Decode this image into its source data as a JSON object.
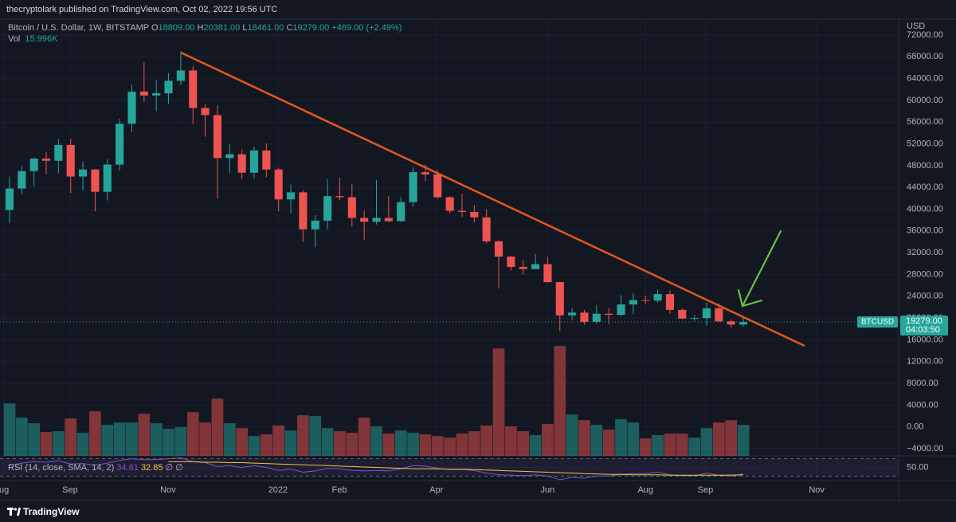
{
  "header": {
    "publisher": "thecryptolark published on TradingView.com, Oct 02, 2022 19:56 UTC"
  },
  "footer": {
    "brand": "TradingView"
  },
  "chart_data": {
    "type": "candlestick",
    "title": "Bitcoin / U.S. Dollar, 1W, BITSTAMP",
    "ohlc_legend": [
      {
        "key": "O",
        "label": "18809.00"
      },
      {
        "key": "H",
        "label": "20381.00"
      },
      {
        "key": "L",
        "label": "18461.00"
      },
      {
        "key": "C",
        "label": "19279.00"
      }
    ],
    "change_label": "+469.00 (+2.49%)",
    "open": [
      39850,
      43800,
      47000,
      49300,
      48900,
      51800,
      46000,
      47300,
      43200,
      48200,
      55700,
      61600,
      60900,
      61300,
      63600,
      65500,
      58600,
      57300,
      49400,
      50100,
      46700,
      50800,
      47300,
      41800,
      43100,
      36300,
      37900,
      42400,
      42200,
      38400,
      37700,
      38400,
      37800,
      41300,
      46800,
      46400,
      42200,
      39700,
      39500,
      38500,
      34100,
      31300,
      29400,
      29000,
      29900,
      26600,
      20500,
      21000,
      19300,
      20800,
      20600,
      22500,
      23300,
      23200,
      24400,
      21500,
      19900,
      20000,
      21800,
      19400,
      18809
    ],
    "high": [
      46000,
      47900,
      49500,
      50500,
      52900,
      52950,
      48800,
      47400,
      49200,
      56600,
      62900,
      67000,
      63700,
      65000,
      69000,
      66300,
      59300,
      59100,
      51900,
      50900,
      51500,
      52100,
      47600,
      44500,
      43500,
      38900,
      45500,
      45800,
      44600,
      39800,
      45400,
      42400,
      42300,
      47700,
      48200,
      47200,
      42400,
      42900,
      40800,
      40000,
      34300,
      31400,
      30600,
      31700,
      31200,
      26700,
      21900,
      21500,
      22400,
      21800,
      24200,
      24600,
      24100,
      25200,
      25100,
      21800,
      20600,
      22800,
      22700,
      19700,
      20381
    ],
    "low": [
      37400,
      42800,
      44200,
      46400,
      46600,
      43000,
      43400,
      39600,
      41600,
      47100,
      54200,
      59700,
      58000,
      59400,
      62800,
      55600,
      53300,
      42000,
      46700,
      45500,
      45600,
      45900,
      39600,
      39300,
      34000,
      33000,
      36300,
      41700,
      36800,
      34300,
      37200,
      37600,
      37600,
      40500,
      45200,
      41900,
      39200,
      38600,
      37600,
      33700,
      25400,
      28700,
      28000,
      29000,
      26500,
      17600,
      19600,
      18800,
      18900,
      18900,
      20300,
      20700,
      22600,
      22800,
      20800,
      19800,
      19500,
      18600,
      19300,
      18200,
      18461
    ],
    "close": [
      43800,
      47000,
      49300,
      48900,
      51800,
      46000,
      47300,
      43200,
      48200,
      55700,
      61600,
      60900,
      61300,
      63600,
      65500,
      58600,
      57300,
      49400,
      50100,
      46700,
      50800,
      47300,
      41800,
      43100,
      36300,
      37900,
      42400,
      42200,
      38400,
      37700,
      38400,
      37800,
      41300,
      46800,
      46400,
      42200,
      39700,
      39500,
      38500,
      34100,
      31300,
      29400,
      29000,
      29900,
      26600,
      20500,
      21000,
      19300,
      20800,
      20600,
      22500,
      23300,
      23200,
      24400,
      21500,
      19900,
      20000,
      21800,
      19400,
      18810,
      19279
    ],
    "up_color": "#26a69a",
    "down_color": "#ef5350",
    "xlim": [
      -0.78,
      72.7
    ],
    "xticks": [
      {
        "value": -0.45,
        "label": "ug"
      },
      {
        "value": 4.95,
        "label": "Sep"
      },
      {
        "value": 12.96,
        "label": "Nov"
      },
      {
        "value": 21.95,
        "label": "2022"
      },
      {
        "value": 26.97,
        "label": "Feb"
      },
      {
        "value": 34.9,
        "label": "Apr"
      },
      {
        "value": 44.0,
        "label": "Jun"
      },
      {
        "value": 52.0,
        "label": "Aug"
      },
      {
        "value": 56.9,
        "label": "Sep"
      },
      {
        "value": 66.0,
        "label": "Nov"
      }
    ],
    "ylim": [
      -5320,
      74930
    ],
    "yticks": [
      {
        "value": 72000,
        "label": "72000.00"
      },
      {
        "value": 68000,
        "label": "68000.00"
      },
      {
        "value": 64000,
        "label": "64000.00"
      },
      {
        "value": 60000,
        "label": "60000.00"
      },
      {
        "value": 56000,
        "label": "56000.00"
      },
      {
        "value": 52000,
        "label": "52000.00"
      },
      {
        "value": 48000,
        "label": "48000.00"
      },
      {
        "value": 44000,
        "label": "44000.00"
      },
      {
        "value": 40000,
        "label": "40000.00"
      },
      {
        "value": 36000,
        "label": "36000.00"
      },
      {
        "value": 32000,
        "label": "32000.00"
      },
      {
        "value": 28000,
        "label": "28000.00"
      },
      {
        "value": 24000,
        "label": "24000.00"
      },
      {
        "value": 20000,
        "label": "20000.00"
      },
      {
        "value": 16000,
        "label": "16000.00"
      },
      {
        "value": 12000,
        "label": "12000.00"
      },
      {
        "value": 8000,
        "label": "8000.00"
      },
      {
        "value": 4000,
        "label": "4000.00"
      },
      {
        "value": 0,
        "label": "0.00"
      },
      {
        "value": -4000,
        "label": "−4000.00"
      }
    ],
    "y_unit": "USD",
    "grid": true,
    "volume": {
      "name": "Vol",
      "value_label": "15.996K",
      "ylim": [
        0,
        225
      ],
      "up_color": "rgba(38,166,154,0.5)",
      "down_color": "rgba(239,83,80,0.5)",
      "values": [
        27,
        19.7,
        16.8,
        12.3,
        12.7,
        19.3,
        11.9,
        23,
        16,
        17.2,
        17.2,
        21.7,
        16.8,
        13.9,
        14.8,
        22.5,
        17.2,
        29.5,
        16.8,
        14.3,
        10.2,
        11.1,
        15.6,
        13.1,
        20.9,
        20.5,
        14.3,
        12.7,
        11.9,
        19.7,
        15.2,
        11.5,
        13.1,
        11.9,
        11.1,
        10.2,
        9.4,
        11.5,
        12.7,
        15.6,
        55.3,
        15.2,
        12.7,
        10.7,
        16.4,
        56.6,
        21.3,
        18.4,
        16,
        13.5,
        18.9,
        17.2,
        9,
        10.7,
        11.5,
        11.5,
        9.4,
        14.3,
        17.2,
        18.4,
        15.996
      ]
    },
    "last_price": {
      "symbol": "BTCUSD",
      "label": "19279.00",
      "countdown": "04:03:50"
    },
    "trendline": {
      "color": "#e4571d",
      "x": [
        14,
        65
      ],
      "y": [
        68800,
        14900
      ]
    },
    "rsi": {
      "title": "RSI (14, close, SMA, 14, 2)",
      "value_label": "34.81",
      "sma_label": "32.85",
      "extra": "∅ ∅",
      "color": "#7e57c2",
      "sma_color": "#f5c542",
      "ylim": [
        21.6,
        74.8
      ],
      "yticks": [
        {
          "value": 50,
          "label": "50.00"
        }
      ],
      "bands": [
        30,
        70
      ],
      "values": [
        55,
        60,
        63,
        62,
        65,
        58,
        59,
        55,
        60,
        66,
        70,
        68,
        68,
        70,
        72,
        63,
        61,
        52,
        54,
        50,
        54,
        50,
        43,
        46,
        39,
        42,
        48,
        47,
        43,
        42,
        43,
        42,
        47,
        54,
        53,
        48,
        45,
        45,
        43,
        37,
        33,
        32,
        31,
        33,
        30,
        22,
        27,
        25,
        30,
        30,
        34,
        36,
        36,
        39,
        33,
        31,
        31,
        37,
        32,
        30,
        34.81
      ],
      "sma": [
        null,
        null,
        null,
        null,
        null,
        null,
        null,
        null,
        null,
        null,
        null,
        null,
        null,
        63,
        63,
        63,
        62,
        62,
        61,
        61,
        60,
        59,
        58,
        57,
        56,
        55,
        54,
        53,
        52,
        51,
        50,
        49,
        48,
        47,
        47,
        47,
        46,
        46,
        45,
        44,
        43,
        42,
        41,
        40,
        39,
        38,
        37,
        36,
        35,
        34,
        34,
        33,
        33,
        33,
        32,
        32,
        32,
        32,
        32,
        32.5,
        32.85
      ]
    }
  }
}
